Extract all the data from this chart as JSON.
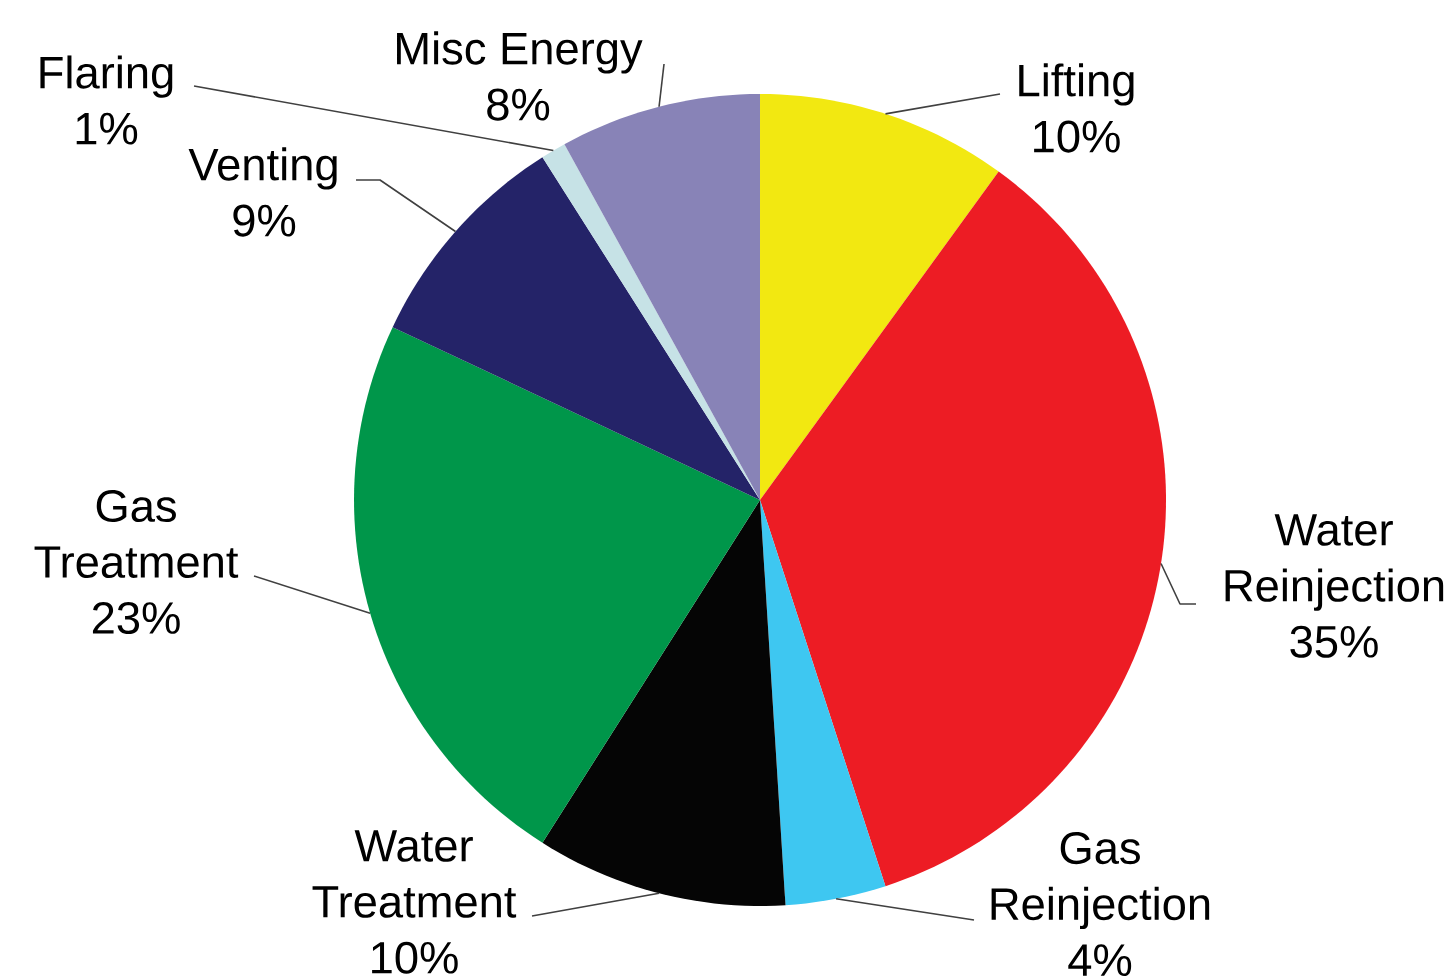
{
  "chart_data": {
    "type": "pie",
    "categories": [
      "Lifting",
      "Water Reinjection",
      "Gas Reinjection",
      "Water Treatment",
      "Gas Treatment",
      "Venting",
      "Flaring",
      "Misc Energy"
    ],
    "values": [
      10,
      35,
      4,
      10,
      23,
      9,
      1,
      8
    ],
    "colors": [
      "#f2e811",
      "#ed1c24",
      "#3ec7f1",
      "#050505",
      "#00964a",
      "#242368",
      "#c6e2e6",
      "#8883b7"
    ],
    "value_labels": [
      "10%",
      "35%",
      "4%",
      "10%",
      "23%",
      "9%",
      "1%",
      "8%"
    ]
  }
}
